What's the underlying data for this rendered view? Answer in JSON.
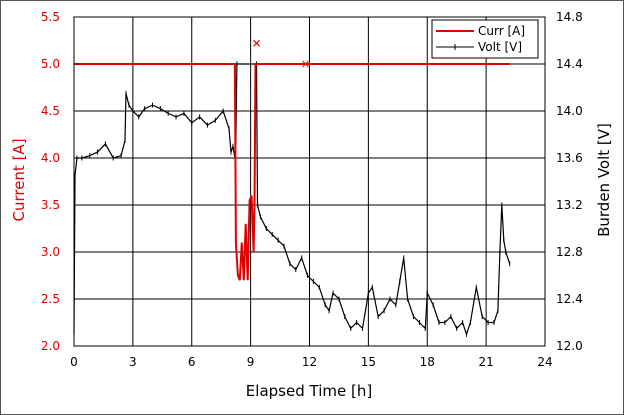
{
  "chart_data": {
    "type": "line",
    "xlabel": "Elapsed Time [h]",
    "ylabel_left": "Current [A]",
    "ylabel_right": "Burden Volt [V]",
    "x_range": [
      0,
      24
    ],
    "y_left_range": [
      2.0,
      5.5
    ],
    "y_right_range": [
      12.0,
      14.8
    ],
    "x_ticks": [
      "0",
      "3",
      "6",
      "9",
      "12",
      "15",
      "18",
      "21",
      "24"
    ],
    "y_left_ticks": [
      "2.0",
      "2.5",
      "3.0",
      "3.5",
      "4.0",
      "4.5",
      "5.0",
      "5.5"
    ],
    "y_right_ticks": [
      "12.0",
      "12.4",
      "12.8",
      "13.2",
      "13.6",
      "14.0",
      "14.4",
      "14.8"
    ],
    "grid": true,
    "legend_position": "top-right",
    "colors": {
      "curr": "#e00000",
      "volt": "#000000",
      "left_axis": "#e00000"
    },
    "series": [
      {
        "name": "Curr [A]",
        "axis": "left",
        "color": "#e00000",
        "x": [
          0,
          8.2,
          8.25,
          8.35,
          8.45,
          8.55,
          8.65,
          8.75,
          8.85,
          8.95,
          9.05,
          9.15,
          9.2,
          9.25,
          9.3,
          9.35,
          9.4,
          22.2
        ],
        "y": [
          5.0,
          5.0,
          3.1,
          2.75,
          2.7,
          3.1,
          2.7,
          3.3,
          2.7,
          3.55,
          3.6,
          3.0,
          3.5,
          5.0,
          5.0,
          5.0,
          5.0,
          5.0
        ],
        "markers": [
          {
            "x": 9.3,
            "y": 5.22
          },
          {
            "x": 11.8,
            "y": 5.0
          }
        ]
      },
      {
        "name": "Volt [V]",
        "axis": "right",
        "color": "#000000",
        "x": [
          0,
          0.05,
          0.15,
          0.4,
          0.8,
          1.2,
          1.6,
          2.0,
          2.4,
          2.6,
          2.65,
          2.8,
          3.0,
          3.3,
          3.6,
          4.0,
          4.4,
          4.8,
          5.2,
          5.6,
          6.0,
          6.4,
          6.8,
          7.2,
          7.6,
          7.9,
          8.0,
          8.1,
          8.2,
          8.25,
          8.3,
          9.3,
          9.35,
          9.5,
          9.8,
          10.1,
          10.4,
          10.7,
          11.0,
          11.3,
          11.6,
          11.9,
          12.2,
          12.5,
          12.8,
          13.0,
          13.2,
          13.5,
          13.8,
          14.1,
          14.4,
          14.7,
          15.0,
          15.2,
          15.5,
          15.8,
          16.1,
          16.4,
          16.6,
          16.8,
          17.0,
          17.3,
          17.6,
          17.9,
          18.0,
          18.3,
          18.6,
          18.9,
          19.2,
          19.5,
          19.8,
          20.0,
          20.2,
          20.5,
          20.8,
          21.1,
          21.4,
          21.6,
          21.7,
          21.8,
          21.9,
          22.0,
          22.2
        ],
        "y": [
          12.1,
          13.45,
          13.6,
          13.6,
          13.62,
          13.65,
          13.72,
          13.6,
          13.62,
          13.75,
          14.15,
          14.05,
          14.0,
          13.95,
          14.02,
          14.05,
          14.02,
          13.98,
          13.95,
          13.98,
          13.9,
          13.95,
          13.88,
          13.92,
          14.0,
          13.85,
          13.65,
          13.7,
          13.6,
          13.75,
          14.4,
          14.4,
          13.2,
          13.1,
          13.0,
          12.95,
          12.9,
          12.85,
          12.7,
          12.65,
          12.75,
          12.6,
          12.55,
          12.5,
          12.35,
          12.3,
          12.45,
          12.4,
          12.25,
          12.15,
          12.2,
          12.15,
          12.45,
          12.5,
          12.25,
          12.3,
          12.4,
          12.35,
          12.55,
          12.75,
          12.4,
          12.25,
          12.2,
          12.15,
          12.45,
          12.35,
          12.2,
          12.2,
          12.25,
          12.15,
          12.2,
          12.1,
          12.2,
          12.5,
          12.25,
          12.2,
          12.2,
          12.3,
          12.8,
          13.2,
          12.9,
          12.8,
          12.7
        ]
      }
    ]
  }
}
